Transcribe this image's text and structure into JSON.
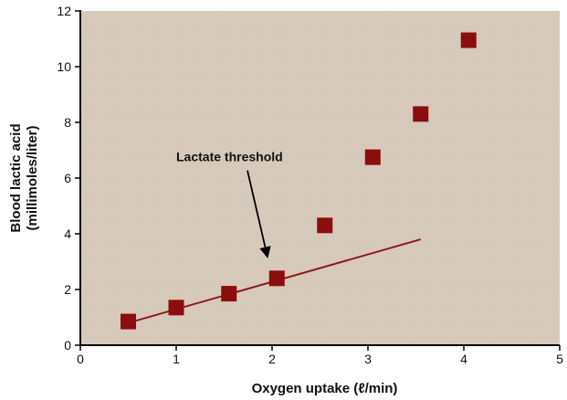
{
  "chart_data": {
    "type": "scatter",
    "xlabel": "Oxygen uptake (ℓ/min)",
    "ylabel_line1": "Blood lactic acid",
    "ylabel_line2": "(millimoles/liter)",
    "xlim": [
      0,
      5
    ],
    "ylim": [
      0,
      12
    ],
    "x_ticks": [
      0,
      1,
      2,
      3,
      4,
      5
    ],
    "y_ticks": [
      0,
      2,
      4,
      6,
      8,
      10,
      12
    ],
    "grid": false,
    "series": [
      {
        "x": [
          0.5,
          1.0,
          1.55,
          2.05,
          2.55,
          3.05,
          3.55,
          4.05
        ],
        "y": [
          0.85,
          1.35,
          1.85,
          2.4,
          4.3,
          6.75,
          8.3,
          10.95
        ]
      }
    ],
    "trend_line": {
      "x": [
        0.5,
        3.55
      ],
      "y": [
        0.8,
        3.8
      ]
    },
    "annotations": [
      {
        "text": "Lactate threshold",
        "text_x": 1.0,
        "text_y": 6.6,
        "arrow_to_x": 1.95,
        "arrow_to_y": 3.2
      }
    ],
    "colors": {
      "plot_background": "#d9ccbe",
      "marker": "#8b0d0d",
      "trend_line": "#8b1a1a",
      "axis": "#000000"
    }
  }
}
